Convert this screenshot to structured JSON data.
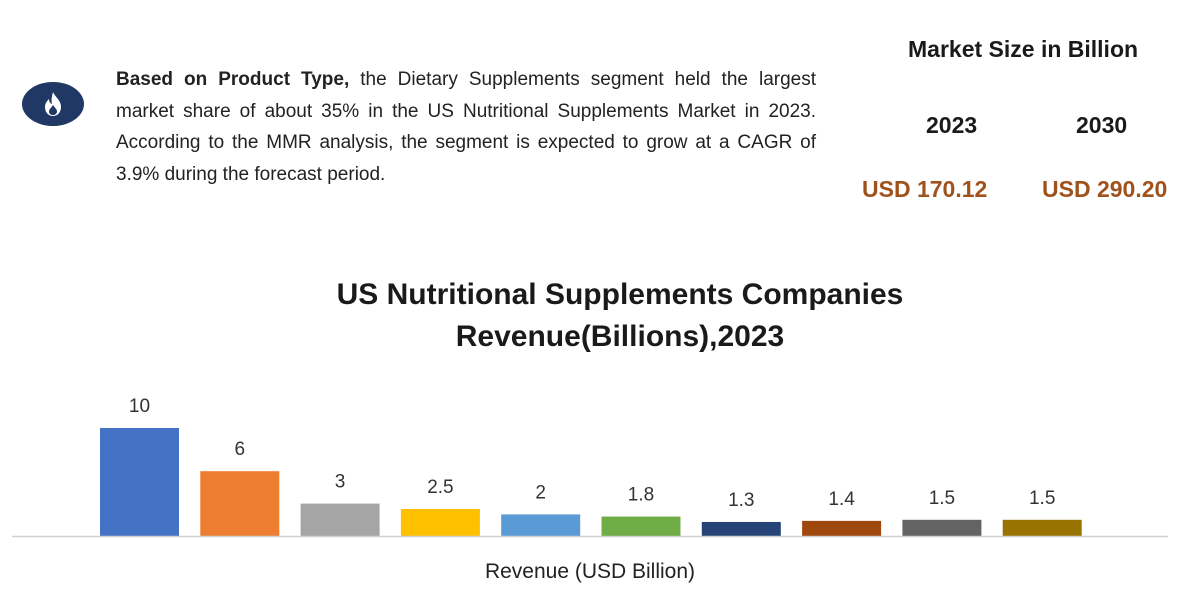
{
  "info": {
    "lead": "Based on Product Type,",
    "body": " the Dietary Supplements segment held the largest market share of about 35% in the US Nutritional Supplements Market in 2023. According to the MMR analysis, the segment is expected to grow at a CAGR of 3.9% during the forecast period.",
    "icon": "flame-icon",
    "icon_color": "#1f3864"
  },
  "market_size": {
    "title": "Market Size in Billion",
    "year1": "2023",
    "year2": "2030",
    "value1": "USD 170.12",
    "value2": "USD 290.20",
    "value_color": "#a0521c"
  },
  "chart_data": {
    "type": "bar",
    "title_line1": "US Nutritional Supplements Companies",
    "title_line2": "Revenue(Billions),2023",
    "xlabel": "Revenue (USD Billion)",
    "ylabel": "",
    "values": [
      10,
      6,
      3,
      2.5,
      2,
      1.8,
      1.3,
      1.4,
      1.5,
      1.5
    ],
    "labels": [
      "10",
      "6",
      "3",
      "2.5",
      "2",
      "1.8",
      "1.3",
      "1.4",
      "1.5",
      "1.5"
    ],
    "colors": [
      "#4472c4",
      "#ed7d31",
      "#a5a5a5",
      "#ffc000",
      "#5b9bd5",
      "#70ad47",
      "#264478",
      "#9e480e",
      "#636363",
      "#997300"
    ],
    "ylim": [
      0,
      10
    ],
    "grid": false,
    "legend": "none"
  }
}
